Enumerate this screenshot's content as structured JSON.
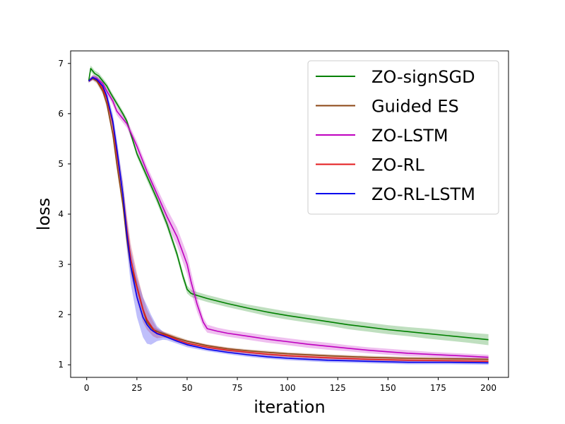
{
  "chart_data": {
    "type": "line",
    "title": "",
    "xlabel": "iteration",
    "ylabel": "loss",
    "xlim": [
      -8,
      210
    ],
    "ylim": [
      0.75,
      7.25
    ],
    "xticks": [
      0,
      25,
      50,
      75,
      100,
      125,
      150,
      175,
      200
    ],
    "yticks": [
      1,
      2,
      3,
      4,
      5,
      6,
      7
    ],
    "grid": false,
    "legend_position": "top-right",
    "series": [
      {
        "name": "ZO-signSGD",
        "color": "#008000",
        "x": [
          1,
          2,
          4,
          6,
          8,
          10,
          12,
          15,
          18,
          20,
          25,
          30,
          35,
          40,
          45,
          48,
          50,
          52,
          55,
          60,
          70,
          80,
          90,
          100,
          110,
          120,
          130,
          140,
          150,
          160,
          170,
          180,
          190,
          200
        ],
        "values": [
          6.65,
          6.9,
          6.8,
          6.75,
          6.65,
          6.55,
          6.4,
          6.2,
          6.0,
          5.85,
          5.2,
          4.75,
          4.3,
          3.8,
          3.2,
          2.75,
          2.5,
          2.42,
          2.38,
          2.32,
          2.22,
          2.13,
          2.05,
          1.98,
          1.92,
          1.86,
          1.8,
          1.75,
          1.7,
          1.66,
          1.62,
          1.58,
          1.54,
          1.5
        ],
        "band": [
          0.04,
          0.06,
          0.06,
          0.06,
          0.06,
          0.06,
          0.06,
          0.06,
          0.06,
          0.06,
          0.06,
          0.08,
          0.08,
          0.08,
          0.08,
          0.08,
          0.08,
          0.07,
          0.07,
          0.07,
          0.07,
          0.07,
          0.08,
          0.08,
          0.08,
          0.08,
          0.09,
          0.09,
          0.09,
          0.09,
          0.1,
          0.1,
          0.1,
          0.11
        ]
      },
      {
        "name": "Guided ES",
        "color": "#8b4513",
        "x": [
          1,
          3,
          5,
          8,
          10,
          13,
          15,
          18,
          20,
          22,
          25,
          28,
          30,
          33,
          36,
          40,
          45,
          50,
          60,
          70,
          80,
          90,
          100,
          120,
          140,
          160,
          180,
          200
        ],
        "values": [
          6.65,
          6.7,
          6.65,
          6.45,
          6.2,
          5.6,
          5.0,
          4.2,
          3.5,
          2.95,
          2.55,
          2.1,
          1.85,
          1.7,
          1.65,
          1.6,
          1.53,
          1.47,
          1.38,
          1.32,
          1.28,
          1.25,
          1.22,
          1.18,
          1.15,
          1.13,
          1.12,
          1.11
        ],
        "band": [
          0.03,
          0.04,
          0.05,
          0.06,
          0.08,
          0.1,
          0.12,
          0.12,
          0.12,
          0.1,
          0.1,
          0.08,
          0.06,
          0.05,
          0.04,
          0.04,
          0.04,
          0.03,
          0.03,
          0.03,
          0.03,
          0.03,
          0.03,
          0.03,
          0.03,
          0.03,
          0.03,
          0.03
        ]
      },
      {
        "name": "ZO-LSTM",
        "color": "#bf00bf",
        "x": [
          1,
          3,
          5,
          8,
          10,
          13,
          15,
          18,
          20,
          25,
          30,
          35,
          40,
          45,
          50,
          52,
          55,
          58,
          60,
          65,
          70,
          80,
          90,
          100,
          110,
          120,
          130,
          140,
          150,
          160,
          170,
          180,
          190,
          200
        ],
        "values": [
          6.65,
          6.72,
          6.7,
          6.6,
          6.45,
          6.25,
          6.05,
          5.9,
          5.8,
          5.35,
          4.85,
          4.4,
          3.95,
          3.55,
          3.0,
          2.65,
          2.2,
          1.85,
          1.72,
          1.67,
          1.63,
          1.57,
          1.51,
          1.46,
          1.41,
          1.37,
          1.33,
          1.29,
          1.26,
          1.23,
          1.21,
          1.19,
          1.17,
          1.15
        ],
        "band": [
          0.03,
          0.05,
          0.05,
          0.05,
          0.06,
          0.08,
          0.08,
          0.08,
          0.08,
          0.1,
          0.1,
          0.12,
          0.15,
          0.18,
          0.2,
          0.2,
          0.15,
          0.1,
          0.08,
          0.07,
          0.07,
          0.07,
          0.07,
          0.07,
          0.07,
          0.07,
          0.06,
          0.06,
          0.06,
          0.06,
          0.05,
          0.05,
          0.05,
          0.05
        ]
      },
      {
        "name": "ZO-RL",
        "color": "#e31a1c",
        "x": [
          1,
          3,
          5,
          8,
          10,
          13,
          15,
          18,
          20,
          22,
          25,
          28,
          30,
          33,
          35,
          38,
          40,
          45,
          50,
          60,
          70,
          80,
          90,
          100,
          120,
          140,
          160,
          180,
          200
        ],
        "values": [
          6.65,
          6.72,
          6.68,
          6.5,
          6.3,
          5.8,
          5.2,
          4.4,
          3.7,
          3.1,
          2.55,
          2.1,
          1.9,
          1.72,
          1.63,
          1.6,
          1.58,
          1.5,
          1.43,
          1.35,
          1.29,
          1.25,
          1.21,
          1.18,
          1.14,
          1.11,
          1.09,
          1.08,
          1.07
        ],
        "band": [
          0.03,
          0.04,
          0.05,
          0.07,
          0.08,
          0.12,
          0.2,
          0.25,
          0.28,
          0.3,
          0.28,
          0.25,
          0.2,
          0.15,
          0.1,
          0.06,
          0.05,
          0.05,
          0.05,
          0.05,
          0.05,
          0.04,
          0.04,
          0.04,
          0.04,
          0.04,
          0.04,
          0.04,
          0.04
        ]
      },
      {
        "name": "ZO-RL-LSTM",
        "color": "#0000ee",
        "x": [
          1,
          3,
          5,
          8,
          10,
          13,
          15,
          18,
          20,
          22,
          25,
          28,
          30,
          32,
          35,
          38,
          40,
          45,
          50,
          60,
          70,
          80,
          90,
          100,
          120,
          140,
          160,
          180,
          200
        ],
        "values": [
          6.65,
          6.72,
          6.68,
          6.55,
          6.35,
          5.85,
          5.3,
          4.4,
          3.6,
          2.95,
          2.35,
          1.95,
          1.8,
          1.7,
          1.62,
          1.58,
          1.55,
          1.47,
          1.4,
          1.31,
          1.25,
          1.2,
          1.16,
          1.13,
          1.09,
          1.07,
          1.05,
          1.05,
          1.04
        ],
        "band": [
          0.03,
          0.04,
          0.05,
          0.08,
          0.1,
          0.15,
          0.2,
          0.25,
          0.3,
          0.35,
          0.4,
          0.4,
          0.38,
          0.3,
          0.15,
          0.08,
          0.06,
          0.05,
          0.05,
          0.04,
          0.04,
          0.04,
          0.04,
          0.04,
          0.04,
          0.04,
          0.04,
          0.04,
          0.04
        ]
      }
    ]
  }
}
